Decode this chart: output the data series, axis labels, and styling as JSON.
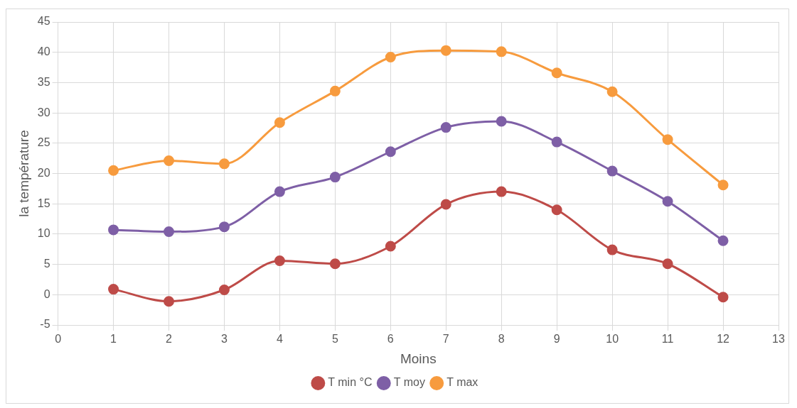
{
  "chart_data": {
    "type": "line",
    "xlabel": "Moins",
    "ylabel": "la température",
    "x": [
      1,
      2,
      3,
      4,
      5,
      6,
      7,
      8,
      9,
      10,
      11,
      12
    ],
    "series": [
      {
        "name": "T min °C",
        "color": "#be4b48",
        "values": [
          0.9,
          -1.1,
          0.8,
          5.6,
          5.1,
          8.0,
          14.9,
          17.0,
          14.0,
          7.4,
          5.1,
          -0.4
        ]
      },
      {
        "name": "T moy",
        "color": "#7e5fa6",
        "values": [
          10.7,
          10.4,
          11.2,
          17.0,
          19.4,
          23.6,
          27.6,
          28.6,
          25.2,
          20.4,
          15.4,
          8.9
        ]
      },
      {
        "name": "T max",
        "color": "#f79b3e",
        "values": [
          20.5,
          22.1,
          21.6,
          28.4,
          33.6,
          39.2,
          40.3,
          40.1,
          36.6,
          33.5,
          25.6,
          18.1
        ]
      }
    ],
    "xlim": [
      0,
      13
    ],
    "xticks": [
      0,
      1,
      2,
      3,
      4,
      5,
      6,
      7,
      8,
      9,
      10,
      11,
      12,
      13
    ],
    "ylim": [
      -5,
      45
    ],
    "yticks": [
      -5,
      0,
      5,
      10,
      15,
      20,
      25,
      30,
      35,
      40,
      45
    ],
    "grid": true,
    "legend": "bottom",
    "marker": "circle",
    "line_style": "solid"
  }
}
